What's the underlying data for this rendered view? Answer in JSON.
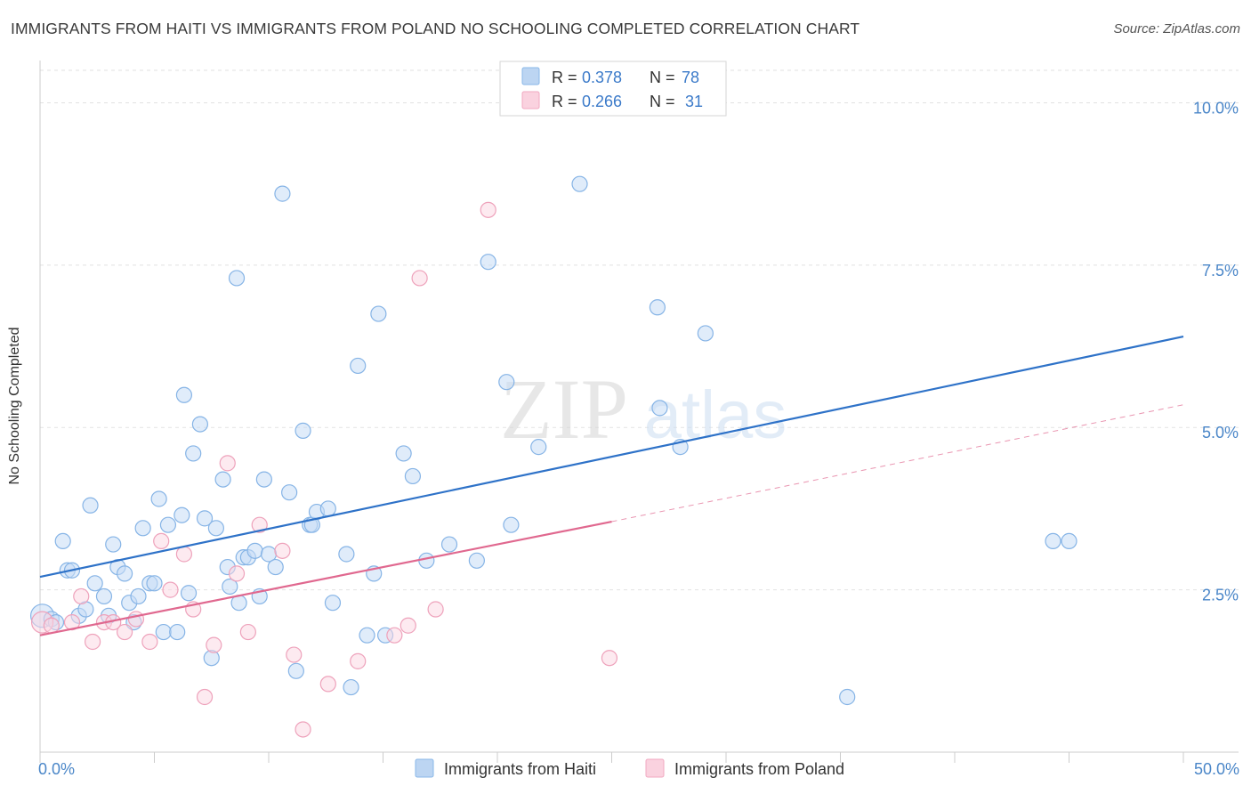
{
  "title": "IMMIGRANTS FROM HAITI VS IMMIGRANTS FROM POLAND NO SCHOOLING COMPLETED CORRELATION CHART",
  "source": "Source: ZipAtlas.com",
  "watermark": {
    "left": "ZIP",
    "right": "atlas"
  },
  "colors": {
    "haiti": "#8ab8e8",
    "haiti_line": "#2e72c8",
    "poland": "#f1a8c0",
    "poland_line": "#e0688f",
    "axis_text": "#4a86c8"
  },
  "legend_top": [
    {
      "r_label": "R = ",
      "r": "0.378",
      "n_label": "N = ",
      "n": "78"
    },
    {
      "r_label": "R = ",
      "r": "0.266",
      "n_label": "N = ",
      "n": "31"
    }
  ],
  "chart_data": {
    "type": "scatter",
    "xlabel": "",
    "ylabel": "No Schooling Completed",
    "xlim": [
      0,
      50
    ],
    "ylim": [
      0,
      10.5
    ],
    "x_tick_labels": [
      {
        "value": 0,
        "label": "0.0%"
      },
      {
        "value": 50,
        "label": "50.0%"
      }
    ],
    "y_tick_labels": [
      {
        "value": 2.5,
        "label": "2.5%"
      },
      {
        "value": 5.0,
        "label": "5.0%"
      },
      {
        "value": 7.5,
        "label": "7.5%"
      },
      {
        "value": 10.0,
        "label": "10.0%"
      }
    ],
    "grid": true,
    "legend_position": "bottom",
    "series": [
      {
        "name": "Immigrants from Haiti",
        "trend": {
          "x": [
            0,
            50
          ],
          "y": [
            2.7,
            6.4
          ]
        },
        "points": [
          [
            0.1,
            2.1
          ],
          [
            0.5,
            2.05
          ],
          [
            0.7,
            2.0
          ],
          [
            1.0,
            3.25
          ],
          [
            1.2,
            2.8
          ],
          [
            1.4,
            2.8
          ],
          [
            1.7,
            2.1
          ],
          [
            2.0,
            2.2
          ],
          [
            2.2,
            3.8
          ],
          [
            2.4,
            2.6
          ],
          [
            2.8,
            2.4
          ],
          [
            3.0,
            2.1
          ],
          [
            3.2,
            3.2
          ],
          [
            3.4,
            2.85
          ],
          [
            3.7,
            2.75
          ],
          [
            3.9,
            2.3
          ],
          [
            4.1,
            2.0
          ],
          [
            4.3,
            2.4
          ],
          [
            4.5,
            3.45
          ],
          [
            4.8,
            2.6
          ],
          [
            5.0,
            2.6
          ],
          [
            5.2,
            3.9
          ],
          [
            5.4,
            1.85
          ],
          [
            5.6,
            3.5
          ],
          [
            6.0,
            1.85
          ],
          [
            6.2,
            3.65
          ],
          [
            6.3,
            5.5
          ],
          [
            6.5,
            2.45
          ],
          [
            6.7,
            4.6
          ],
          [
            7.0,
            5.05
          ],
          [
            7.2,
            3.6
          ],
          [
            7.5,
            1.45
          ],
          [
            7.7,
            3.45
          ],
          [
            8.0,
            4.2
          ],
          [
            8.2,
            2.85
          ],
          [
            8.3,
            2.55
          ],
          [
            8.6,
            7.3
          ],
          [
            8.7,
            2.3
          ],
          [
            8.9,
            3.0
          ],
          [
            9.1,
            3.0
          ],
          [
            9.4,
            3.1
          ],
          [
            9.6,
            2.4
          ],
          [
            9.8,
            4.2
          ],
          [
            10.0,
            3.05
          ],
          [
            10.3,
            2.85
          ],
          [
            10.6,
            8.6
          ],
          [
            10.9,
            4.0
          ],
          [
            11.2,
            1.25
          ],
          [
            11.5,
            4.95
          ],
          [
            11.8,
            3.5
          ],
          [
            11.9,
            3.5
          ],
          [
            12.1,
            3.7
          ],
          [
            12.6,
            3.75
          ],
          [
            12.8,
            2.3
          ],
          [
            13.4,
            3.05
          ],
          [
            13.6,
            1.0
          ],
          [
            13.9,
            5.95
          ],
          [
            14.3,
            1.8
          ],
          [
            14.6,
            2.75
          ],
          [
            14.8,
            6.75
          ],
          [
            15.1,
            1.8
          ],
          [
            15.9,
            4.6
          ],
          [
            16.3,
            4.25
          ],
          [
            16.9,
            2.95
          ],
          [
            17.9,
            3.2
          ],
          [
            19.1,
            2.95
          ],
          [
            19.6,
            7.55
          ],
          [
            20.4,
            5.7
          ],
          [
            20.6,
            3.5
          ],
          [
            21.8,
            4.7
          ],
          [
            23.6,
            8.75
          ],
          [
            27.0,
            6.85
          ],
          [
            27.1,
            5.3
          ],
          [
            28.0,
            4.7
          ],
          [
            29.1,
            6.45
          ],
          [
            35.3,
            0.85
          ],
          [
            44.3,
            3.25
          ],
          [
            45.0,
            3.25
          ]
        ]
      },
      {
        "name": "Immigrants from Poland",
        "trend": {
          "x": [
            0,
            25
          ],
          "y": [
            1.8,
            3.55
          ]
        },
        "trend_extension": {
          "x": [
            25,
            50
          ],
          "y": [
            3.55,
            5.35
          ]
        },
        "points": [
          [
            0.1,
            2.0
          ],
          [
            0.5,
            1.95
          ],
          [
            1.4,
            2.0
          ],
          [
            1.8,
            2.4
          ],
          [
            2.3,
            1.7
          ],
          [
            2.8,
            2.0
          ],
          [
            3.2,
            2.0
          ],
          [
            3.7,
            1.85
          ],
          [
            4.2,
            2.05
          ],
          [
            4.8,
            1.7
          ],
          [
            5.3,
            3.25
          ],
          [
            5.7,
            2.5
          ],
          [
            6.3,
            3.05
          ],
          [
            6.7,
            2.2
          ],
          [
            7.2,
            0.85
          ],
          [
            7.6,
            1.65
          ],
          [
            8.2,
            4.45
          ],
          [
            8.6,
            2.75
          ],
          [
            9.1,
            1.85
          ],
          [
            9.6,
            3.5
          ],
          [
            10.6,
            3.1
          ],
          [
            11.1,
            1.5
          ],
          [
            11.5,
            0.35
          ],
          [
            12.6,
            1.05
          ],
          [
            13.9,
            1.4
          ],
          [
            15.5,
            1.8
          ],
          [
            16.1,
            1.95
          ],
          [
            16.6,
            7.3
          ],
          [
            17.3,
            2.2
          ],
          [
            19.6,
            8.35
          ],
          [
            24.9,
            1.45
          ]
        ]
      }
    ]
  }
}
